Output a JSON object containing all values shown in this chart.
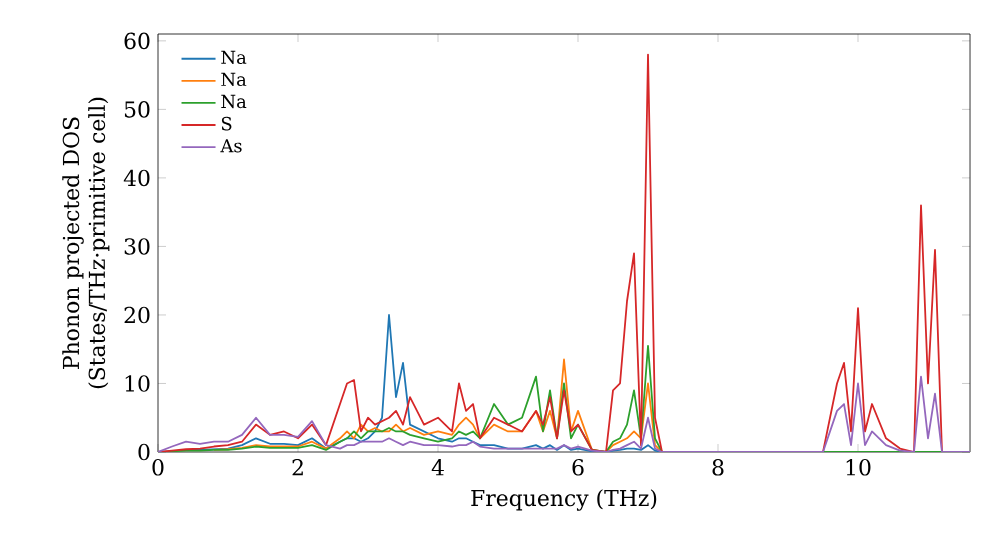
{
  "chart_data": {
    "type": "line",
    "xlabel": "Frequency (THz)",
    "ylabel": "Phonon projected DOS (States/THz·primitive cell)",
    "x": [
      0,
      0.2,
      0.4,
      0.6,
      0.8,
      1.0,
      1.2,
      1.4,
      1.6,
      1.8,
      2.0,
      2.2,
      2.4,
      2.6,
      2.7,
      2.8,
      2.9,
      3.0,
      3.1,
      3.2,
      3.3,
      3.4,
      3.5,
      3.6,
      3.8,
      4.0,
      4.2,
      4.3,
      4.4,
      4.5,
      4.6,
      4.8,
      5.0,
      5.2,
      5.4,
      5.5,
      5.6,
      5.7,
      5.8,
      5.9,
      6.0,
      6.2,
      6.4,
      6.5,
      6.6,
      6.7,
      6.8,
      6.9,
      7.0,
      7.1,
      7.2,
      7.5,
      9.5,
      9.7,
      9.8,
      9.9,
      10.0,
      10.1,
      10.2,
      10.4,
      10.6,
      10.8,
      10.9,
      11.0,
      11.1,
      11.2,
      11.6
    ],
    "series": [
      {
        "name": "Na",
        "color": "#1f77b4",
        "values": [
          null,
          null,
          0.3,
          0.3,
          0.4,
          0.5,
          1,
          2,
          1.2,
          1.2,
          1,
          2,
          0.5,
          1.5,
          2,
          2,
          1.5,
          2,
          3,
          5,
          20,
          8,
          13,
          4,
          3,
          2,
          1.5,
          2,
          2,
          1.5,
          1,
          1,
          0.5,
          0.5,
          1,
          0.5,
          1,
          0.3,
          1,
          0.3,
          0.5,
          0.1,
          0,
          0.2,
          0.3,
          0.5,
          0.5,
          0.3,
          1,
          0.2,
          0,
          0,
          null,
          null,
          null,
          null,
          null,
          null,
          null,
          null,
          null,
          null,
          null,
          null,
          null,
          null,
          null
        ]
      },
      {
        "name": "Na",
        "color": "#ff7f0e",
        "values": [
          null,
          null,
          null,
          null,
          0.3,
          0.4,
          0.6,
          1,
          0.8,
          0.8,
          0.8,
          1.5,
          0.5,
          2,
          3,
          2,
          4,
          3,
          3.5,
          3,
          3,
          4,
          3,
          3.5,
          2.5,
          3,
          2.5,
          4,
          5,
          4,
          2,
          4,
          3,
          3,
          6,
          3,
          6,
          2,
          13.5,
          3,
          6,
          0.3,
          0,
          1,
          1.5,
          2,
          3,
          2,
          10,
          1,
          0,
          0,
          null,
          null,
          null,
          null,
          null,
          null,
          null,
          null,
          null,
          null,
          null,
          null,
          null,
          null,
          null
        ]
      },
      {
        "name": "Na",
        "color": "#2ca02c",
        "values": [
          0,
          0.1,
          0.2,
          0.2,
          0.3,
          0.3,
          0.5,
          0.8,
          0.6,
          0.6,
          0.6,
          1,
          0.3,
          1.5,
          2,
          3,
          2,
          3,
          3,
          3,
          3.5,
          3,
          3,
          2.5,
          2,
          1.5,
          2,
          3,
          2.5,
          3,
          2,
          7,
          4,
          5,
          11,
          3,
          9,
          2,
          10,
          2,
          4,
          0.3,
          0,
          1.5,
          2,
          4,
          9,
          2,
          15.5,
          2,
          0,
          0,
          0,
          0,
          0,
          0,
          0,
          0,
          0,
          0,
          0,
          0,
          0,
          0,
          0,
          0,
          0
        ]
      },
      {
        "name": "S",
        "color": "#d62728",
        "values": [
          0,
          0.2,
          0.4,
          0.5,
          0.8,
          1,
          1.5,
          4,
          2.5,
          3,
          2,
          4,
          1,
          7,
          10,
          10.5,
          3,
          5,
          4,
          4.5,
          5,
          6,
          4,
          8,
          4,
          5,
          3,
          10,
          6,
          7,
          2,
          5,
          4,
          3,
          6,
          4,
          8,
          2,
          9,
          3,
          4,
          0.3,
          0,
          9,
          10,
          22,
          29,
          1,
          58,
          5,
          0,
          0,
          0,
          10,
          13,
          3,
          21,
          3,
          7,
          2,
          0.5,
          0,
          36,
          10,
          29.5,
          0,
          0
        ]
      },
      {
        "name": "As",
        "color": "#9467bd",
        "values": [
          0,
          0.8,
          1.5,
          1.2,
          1.5,
          1.5,
          2.5,
          5,
          2.5,
          2.5,
          2.2,
          4.5,
          1,
          0.5,
          1,
          1,
          1.5,
          1.5,
          1.5,
          1.5,
          2,
          1.5,
          1,
          1.5,
          1,
          1,
          0.8,
          1,
          1,
          1.5,
          0.8,
          0.5,
          0.5,
          0.5,
          0.5,
          0.5,
          0.5,
          0.5,
          1,
          0.5,
          0.8,
          0.2,
          0,
          0.3,
          0.5,
          1,
          1.5,
          0.5,
          5,
          0.5,
          0,
          0,
          0,
          6,
          7,
          1,
          10,
          1,
          3,
          1,
          0.2,
          0,
          11,
          2,
          8.5,
          0,
          0
        ]
      }
    ],
    "xlim": [
      0,
      11.6
    ],
    "ylim": [
      0,
      61
    ],
    "xticks": [
      0,
      2,
      4,
      6,
      8,
      10
    ],
    "yticks": [
      0,
      10,
      20,
      30,
      40,
      50,
      60
    ],
    "legend": "top left",
    "grid": false,
    "marker": "none",
    "line_style": "solid"
  }
}
